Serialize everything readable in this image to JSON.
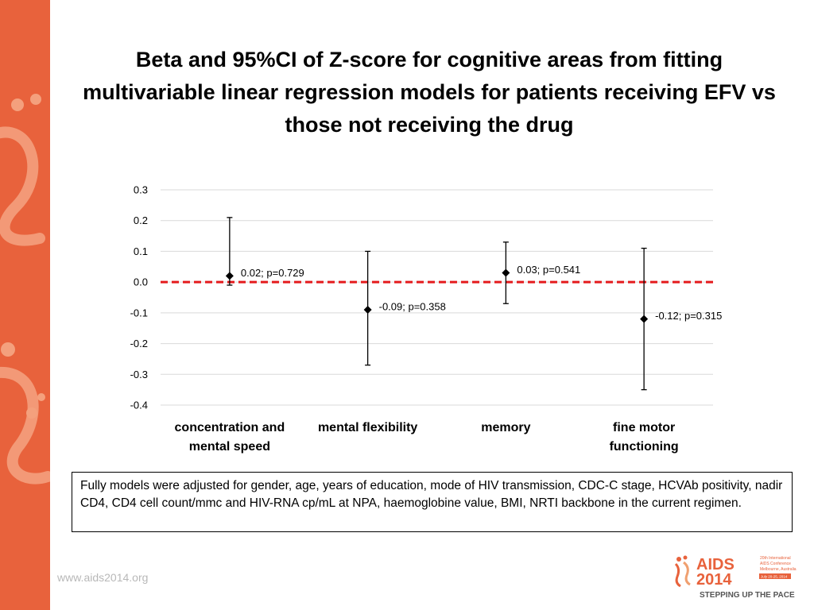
{
  "slide": {
    "title": "Beta and 95%CI of Z-score for cognitive areas from fitting multivariable linear regression models for patients receiving EFV vs those not receiving the drug",
    "footnote": "Fully models were adjusted for gender, age, years of education, mode of HIV transmission, CDC-C stage, HCVAb positivity, nadir CD4, CD4 cell count/mmc and HIV-RNA cp/mL at NPA, haemoglobine value, BMI, NRTI backbone in the current regimen.",
    "url": "www.aids2014.org",
    "accent_color": "#e8623c",
    "logo": {
      "name": "AIDS",
      "year": "2014",
      "line1": "20th International",
      "line2": "AIDS Conference",
      "line3": "Melbourne, Australia",
      "dates": "July 20-25, 2014",
      "tagline": "STEPPING UP THE PACE"
    }
  },
  "chart_data": {
    "type": "scatter",
    "categories": [
      [
        "concentration and",
        "mental speed"
      ],
      [
        "mental flexibility"
      ],
      [
        "memory"
      ],
      [
        "fine motor",
        "functioning"
      ]
    ],
    "series": [
      {
        "values": [
          0.02,
          -0.09,
          0.03,
          -0.12
        ],
        "ci_lower": [
          -0.01,
          -0.27,
          -0.07,
          -0.35
        ],
        "ci_upper": [
          0.21,
          0.1,
          0.13,
          0.11
        ],
        "labels": [
          "0.02; p=0.729",
          "-0.09; p=0.358",
          "0.03; p=0.541",
          "-0.12; p=0.315"
        ]
      }
    ],
    "ylim": [
      -0.4,
      0.3
    ],
    "yticks": [
      0.3,
      0.2,
      0.1,
      0.0,
      -0.1,
      -0.2,
      -0.3,
      -0.4
    ],
    "ytick_labels": [
      "0.3",
      "0.2",
      "0.1",
      "0.0",
      "-0.1",
      "-0.2",
      "-0.3",
      "-0.4"
    ],
    "reference_line": {
      "y": 0.0,
      "color": "#e41a1c",
      "style": "dashed"
    },
    "grid": true,
    "marker": "diamond",
    "legend": "none"
  }
}
